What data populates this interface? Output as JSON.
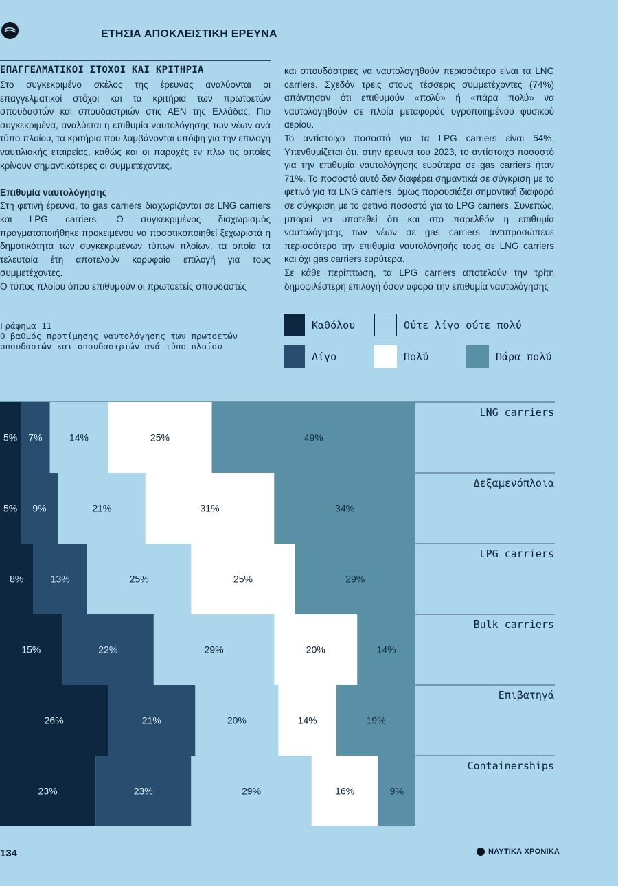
{
  "header": {
    "title": "ΕΤΗΣΙΑ ΑΠΟΚΛΕΙΣΤΙΚΗ ΕΡΕΥΝΑ",
    "logo_icon": "swoosh-logo-icon"
  },
  "section": {
    "title": "ΕΠΑΓΓΕΛΜΑΤΙΚΟΙ ΣΤΟΧΟΙ ΚΑΙ ΚΡΙΤΗΡΙΑ"
  },
  "article": {
    "intro": "Στο συγκεκριμένο σκέλος της έρευνας αναλύονται οι επαγγελματικοί στόχοι και τα κριτήρια των πρωτοετών σπουδαστών και σπουδαστριών στις ΑΕΝ της Ελλάδας. Πιο συγκεκριμένα, αναλύεται η επιθυμία ναυτολόγησης των νέων ανά τύπο πλοίου, τα κριτήρια που λαμβάνονται υπόψη για την επιλογή ναυτιλιακής εταιρείας, καθώς και οι παροχές εν πλω τις οποίες κρίνουν σημαντικότερες οι συμμετέχοντες.",
    "subheading": "Επιθυμία ναυτολόγησης",
    "left_p1": "Στη φετινή έρευνα, τα gas carriers διαχωρίζονται σε LNG carriers και LPG carriers. Ο συγκεκριμένος διαχωρισμός πραγματοποιήθηκε προκειμένου να ποσοτικοποιηθεί ξεχωριστά η δημοτικότητα των συγκεκριμένων τύπων πλοίων, τα οποία τα τελευταία έτη αποτελούν κορυφαία επιλογή για τους συμμετέχοντες.",
    "left_p2": "Ο τύπος πλοίου όπου επιθυμούν οι πρωτοετείς σπουδαστές",
    "right_p1": "και σπουδάστριες να ναυτολογηθούν περισσότερο είναι τα LNG carriers. Σχεδόν τρεις στους τέσσερις συμμετέχοντες (74%) απάντησαν ότι επιθυμούν «πολύ» ή «πάρα πολύ» να ναυτολογηθούν σε πλοία μεταφοράς υγροποιημένου φυσικού αερίου.",
    "right_p2": "Το αντίστοιχο ποσοστό για τα LPG carriers είναι 54%. Υπενθυμίζεται ότι, στην έρευνα του 2023, το αντίστοιχο ποσοστό για την επιθυμία ναυτολόγησης ευρύτερα σε gas carriers ήταν 71%. Το ποσοστό αυτό δεν διαφέρει σημαντικά σε σύγκριση με το φετινό για τα LNG carriers, όμως παρουσιάζει σημαντική διαφορά σε σύγκριση με το φετινό ποσοστό για τα LPG carriers. Συνεπώς, μπορεί να υποτεθεί ότι και στο παρελθόν η επιθυμία ναυτολόγησης των νέων σε gas carriers αντιπροσώπευε περισσότερο την επιθυμία ναυτολόγησής τους σε LNG carriers και όχι gas carriers ευρύτερα.",
    "right_p3": "Σε κάθε περίπτωση, τα LPG carriers αποτελούν την τρίτη δημοφιλέστερη επιλογή όσον αφορά την επιθυμία ναυτολόγησης"
  },
  "chart_caption": {
    "number": "Γράφημα 11",
    "text": "Ο βαθμός προτίμησης ναυτολόγησης των πρωτοετών σπουδαστών και σπουδαστριών ανά τύπο πλοίου"
  },
  "chart_data": {
    "type": "bar",
    "orientation": "horizontal",
    "stacked": true,
    "unit": "%",
    "categories": [
      "LNG carriers",
      "Δεξαμενόπλοια",
      "LPG carriers",
      "Bulk carriers",
      "Επιβατηγά",
      "Containerships"
    ],
    "series": [
      {
        "name": "Καθόλου",
        "color": "#0d2741",
        "values": [
          5,
          5,
          8,
          15,
          26,
          23
        ]
      },
      {
        "name": "Λίγο",
        "color": "#284d6f",
        "values": [
          7,
          9,
          13,
          22,
          21,
          23
        ]
      },
      {
        "name": "Ούτε λίγο ούτε πολύ",
        "color": "#acd6ec",
        "values": [
          14,
          21,
          25,
          29,
          20,
          29
        ]
      },
      {
        "name": "Πολύ",
        "color": "#ffffff",
        "values": [
          25,
          31,
          25,
          20,
          14,
          16
        ]
      },
      {
        "name": "Πάρα πολύ",
        "color": "#5a90a6",
        "values": [
          49,
          34,
          29,
          14,
          19,
          9
        ]
      }
    ],
    "legend_position": "top"
  },
  "footer": {
    "page_number": "134",
    "brand": "ΝΑΥΤΙΚΑ ΧΡΟΝΙΚΑ",
    "brand_icon": "swoosh-logo-icon"
  }
}
